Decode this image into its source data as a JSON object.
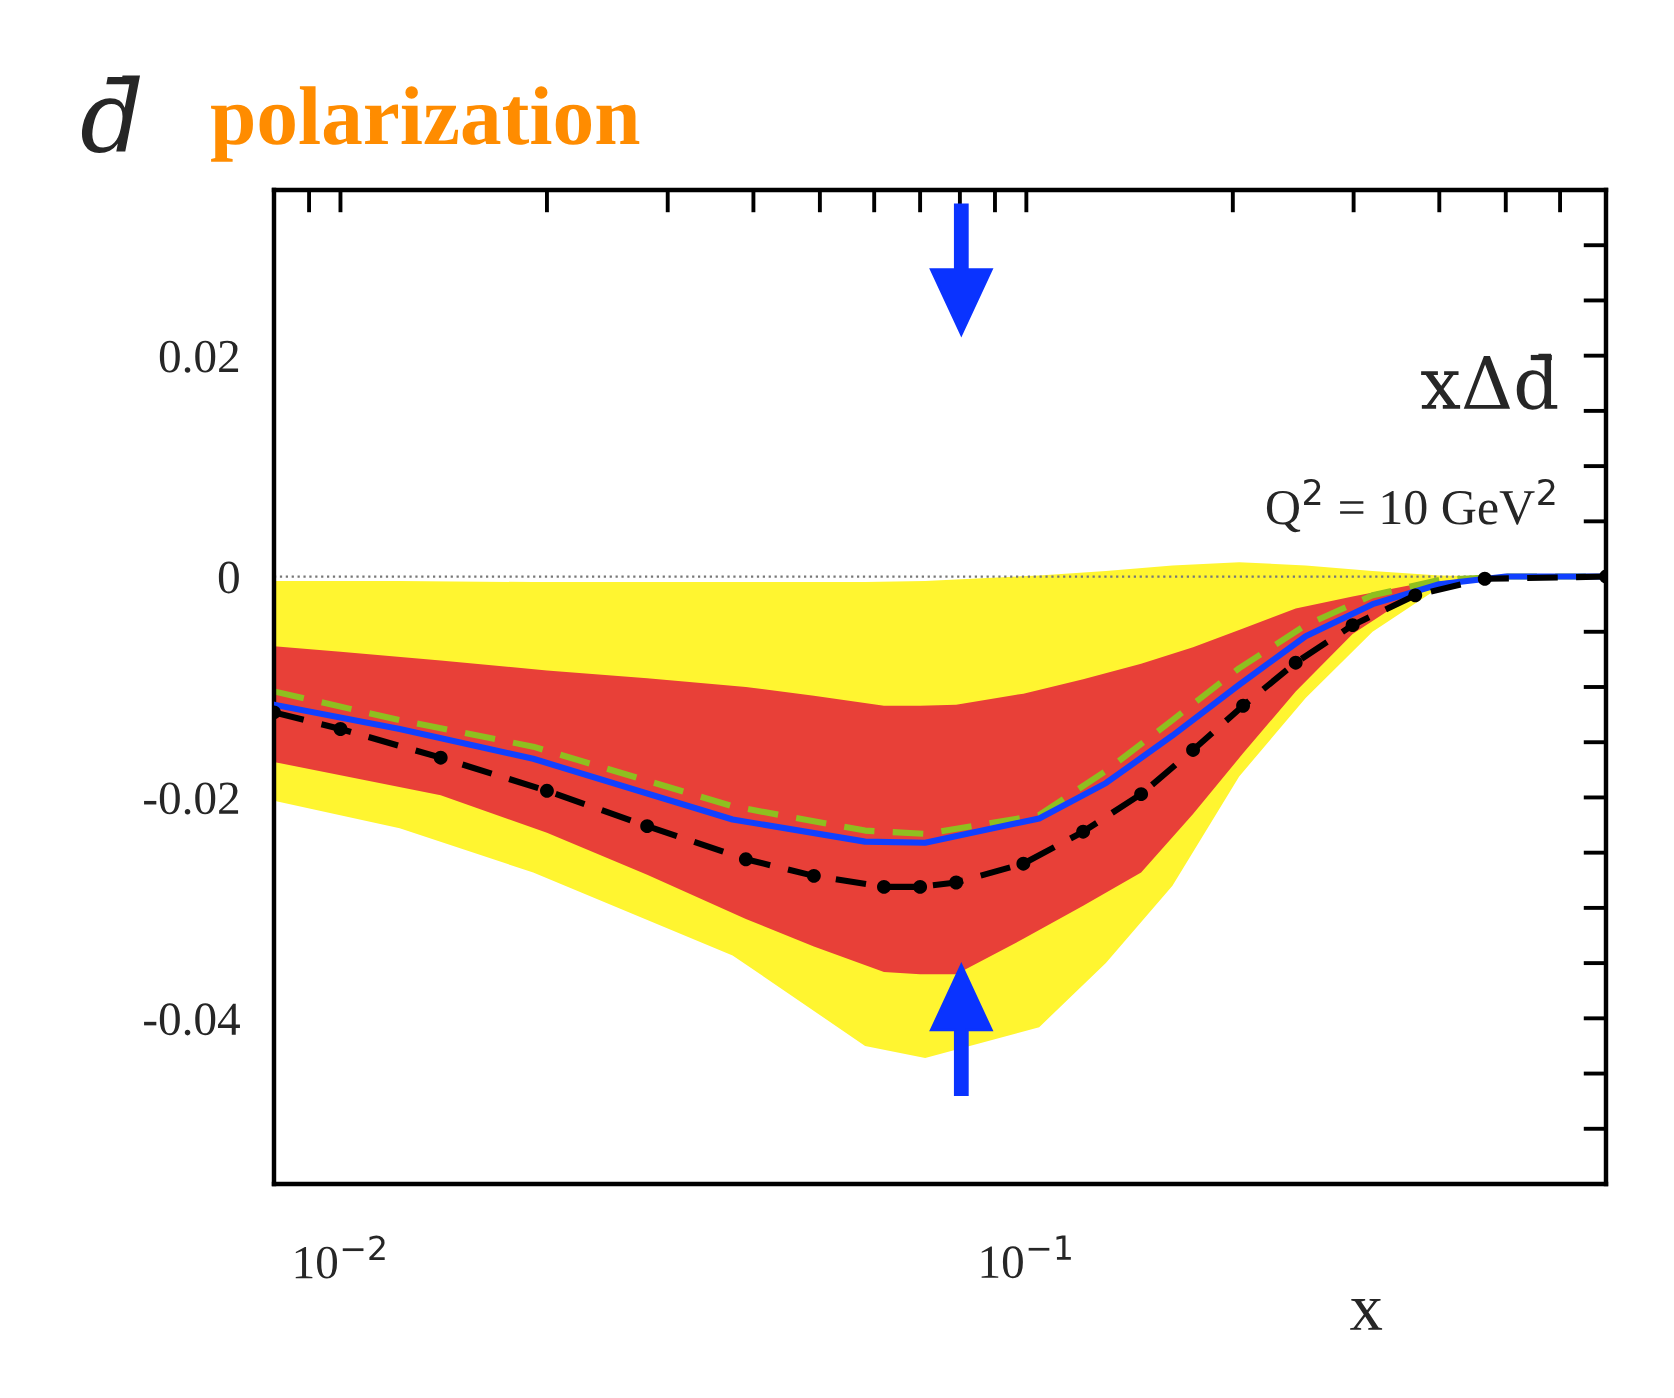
{
  "chart_data": {
    "type": "line",
    "title": "d̄ polarization",
    "xlabel": "x",
    "annotations": [
      "xΔd̄",
      "Q$^{2}$ = 10 GeV$^{2}$"
    ],
    "log": "x",
    "grid": false,
    "xlim": [
      0.008,
      0.7
    ],
    "xticks": [
      {
        "value": 0.008,
        "label": null
      },
      {
        "value": 0.009,
        "label": null
      },
      {
        "value": 0.01,
        "label": "10$^{−2}$"
      },
      {
        "value": 0.02,
        "label": null
      },
      {
        "value": 0.03,
        "label": null
      },
      {
        "value": 0.04,
        "label": null
      },
      {
        "value": 0.05,
        "label": null
      },
      {
        "value": 0.06,
        "label": null
      },
      {
        "value": 0.07,
        "label": null
      },
      {
        "value": 0.08,
        "label": null
      },
      {
        "value": 0.09,
        "label": null
      },
      {
        "value": 0.1,
        "label": "10$^{−1}$"
      },
      {
        "value": 0.2,
        "label": null
      },
      {
        "value": 0.3,
        "label": null
      },
      {
        "value": 0.4,
        "label": null
      },
      {
        "value": 0.5,
        "label": null
      },
      {
        "value": 0.6,
        "label": null
      },
      {
        "value": 0.7,
        "label": null
      }
    ],
    "ylim": [
      -0.055,
      0.035
    ],
    "yticks": [
      {
        "value": -0.05,
        "label": null
      },
      {
        "value": -0.045,
        "label": null
      },
      {
        "value": -0.04,
        "label": "-0.04"
      },
      {
        "value": -0.035,
        "label": null
      },
      {
        "value": -0.03,
        "label": null
      },
      {
        "value": -0.025,
        "label": null
      },
      {
        "value": -0.02,
        "label": "-0.02"
      },
      {
        "value": -0.015,
        "label": null
      },
      {
        "value": -0.01,
        "label": null
      },
      {
        "value": -0.005,
        "label": null
      },
      {
        "value": 0,
        "label": "0"
      },
      {
        "value": 0.005,
        "label": null
      },
      {
        "value": 0.01,
        "label": null
      },
      {
        "value": 0.015,
        "label": null
      },
      {
        "value": 0.02,
        "label": "0.02"
      },
      {
        "value": 0.025,
        "label": null
      },
      {
        "value": 0.03,
        "label": null
      }
    ],
    "ref_lines": [
      {
        "axis": "y",
        "value": 0,
        "line_style": "dotted",
        "color": "#777777"
      }
    ],
    "series": [
      {
        "color": "#8fbf1f",
        "line_style": "dashed",
        "marker": "none",
        "x": [
          0.008,
          0.0122,
          0.0191,
          0.0373,
          0.0582,
          0.0712,
          0.1044,
          0.1306,
          0.1633,
          0.2043,
          0.2554,
          0.3197,
          0.4,
          0.5,
          0.7
        ],
        "values": [
          -0.0104,
          -0.013,
          -0.0154,
          -0.0208,
          -0.023,
          -0.0233,
          -0.0216,
          -0.0176,
          -0.013,
          -0.0083,
          -0.0044,
          -0.0017,
          -0.0003,
          0,
          0
        ]
      },
      {
        "color": "#1040ff",
        "line_style": "solid",
        "marker": "none",
        "x": [
          0.008,
          0.0122,
          0.0191,
          0.0373,
          0.0582,
          0.0712,
          0.1044,
          0.1306,
          0.1633,
          0.2043,
          0.2554,
          0.3197,
          0.4,
          0.5,
          0.7
        ],
        "values": [
          -0.0116,
          -0.0138,
          -0.0165,
          -0.022,
          -0.024,
          -0.0241,
          -0.0219,
          -0.0187,
          -0.0144,
          -0.0098,
          -0.0054,
          -0.0025,
          -0.0007,
          0,
          0
        ],
        "lower": [
          -0.0203,
          -0.0228,
          -0.0268,
          -0.0343,
          -0.0425,
          -0.0436,
          -0.0408,
          -0.035,
          -0.028,
          -0.0181,
          -0.011,
          -0.005,
          -0.001,
          0,
          0
        ],
        "upper": [
          -0.0004,
          -0.0004,
          -0.0005,
          -0.0005,
          -0.0005,
          -0.0004,
          0.0001,
          0.0005,
          0.001,
          0.0013,
          0.001,
          0.0005,
          0.0001,
          0,
          0
        ]
      },
      {
        "color": "#000000",
        "line_style": "dashed",
        "marker": "circle",
        "x": [
          0.008,
          0.01,
          0.014,
          0.02,
          0.028,
          0.039,
          0.049,
          0.062,
          0.07,
          0.079,
          0.099,
          0.121,
          0.147,
          0.175,
          0.207,
          0.247,
          0.299,
          0.369,
          0.466,
          0.7
        ],
        "values": [
          -0.0123,
          -0.0138,
          -0.0164,
          -0.0194,
          -0.0226,
          -0.0256,
          -0.0271,
          -0.0281,
          -0.0281,
          -0.0277,
          -0.026,
          -0.0231,
          -0.0197,
          -0.0157,
          -0.0117,
          -0.0078,
          -0.0044,
          -0.0017,
          -0.0002,
          0
        ],
        "lower": [
          -0.0168,
          -0.018,
          -0.0198,
          -0.0232,
          -0.027,
          -0.031,
          -0.0335,
          -0.0358,
          -0.036,
          -0.036,
          -0.0328,
          -0.0298,
          -0.0268,
          -0.0215,
          -0.016,
          -0.0104,
          -0.0052,
          -0.0015,
          0,
          0
        ],
        "upper": [
          -0.0063,
          -0.0068,
          -0.0076,
          -0.0085,
          -0.0092,
          -0.01,
          -0.0108,
          -0.0117,
          -0.0117,
          -0.0116,
          -0.0106,
          -0.0093,
          -0.0079,
          -0.0064,
          -0.0047,
          -0.0029,
          -0.0018,
          -0.0007,
          0,
          0
        ]
      }
    ]
  }
}
